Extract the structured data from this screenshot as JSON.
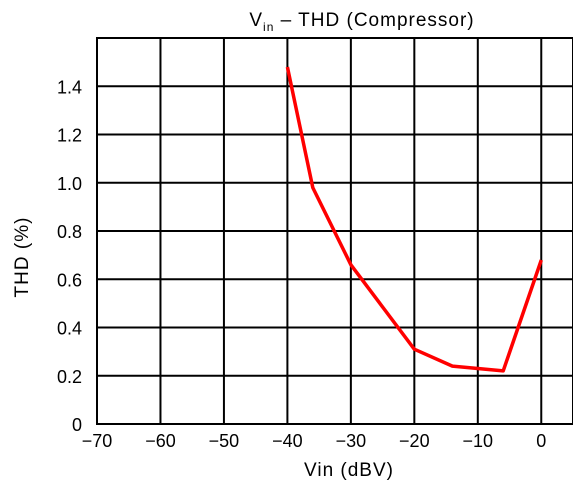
{
  "chart_data": {
    "type": "line",
    "title": {
      "main": "V",
      "subscript": "in",
      "rest": " – THD (Compressor)"
    },
    "xlabel": "Vin (dBV)",
    "ylabel": "THD (%)",
    "xlim": [
      -70,
      5
    ],
    "ylim": [
      0,
      1.6
    ],
    "x_ticks": [
      -70,
      -60,
      -50,
      -40,
      -30,
      -20,
      -10,
      0
    ],
    "x_tick_labels": [
      "−70",
      "−60",
      "−50",
      "−40",
      "−30",
      "−20",
      "−10",
      "0"
    ],
    "y_ticks": [
      0,
      0.2,
      0.4,
      0.6,
      0.8,
      1.0,
      1.2,
      1.4
    ],
    "y_tick_labels": [
      "0",
      "0.2",
      "0.4",
      "0.6",
      "0.8",
      "1.0",
      "1.2",
      "1.4"
    ],
    "grid": true,
    "series": [
      {
        "color": "#ff0000",
        "x": [
          -40,
          -36,
          -30,
          -20,
          -14,
          -6,
          0
        ],
        "y": [
          1.48,
          0.98,
          0.66,
          0.31,
          0.24,
          0.22,
          0.68
        ]
      }
    ]
  }
}
